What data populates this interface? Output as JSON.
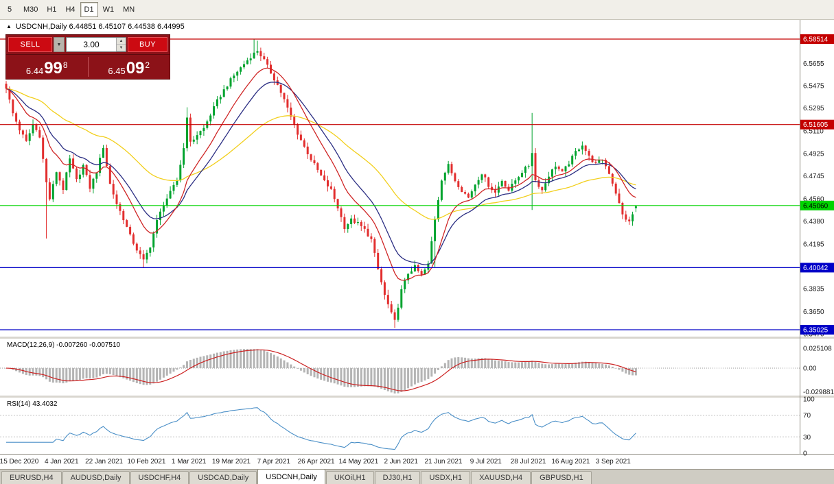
{
  "toolbar": {
    "timeframes": [
      "5",
      "M30",
      "H1",
      "H4",
      "D1",
      "W1",
      "MN"
    ],
    "active": "D1"
  },
  "chart_header": {
    "title": "USDCNH,Daily 6.44851 6.45107 6.44538 6.44995"
  },
  "icons": {
    "collapse": "▲",
    "dropdown": "▼",
    "spin_up": "▲",
    "spin_down": "▼"
  },
  "trade_panel": {
    "sell_label": "SELL",
    "buy_label": "BUY",
    "lots": "3.00",
    "sell_price": {
      "prefix": "6.44",
      "main": "99",
      "sup": "8"
    },
    "buy_price": {
      "prefix": "6.45",
      "main": "09",
      "sup": "2"
    }
  },
  "chart_data": {
    "type": "candlestick",
    "symbol": "USDCNH",
    "timeframe": "Daily",
    "ohlc_current": {
      "open": 6.44851,
      "high": 6.45107,
      "low": 6.44538,
      "close": 6.44995
    },
    "n_candles": 189,
    "y_ticks": [
      "6.5655",
      "6.5475",
      "6.5295",
      "6.5110",
      "6.4925",
      "6.4745",
      "6.4560",
      "6.4380",
      "6.4195",
      "6.4015",
      "6.3835",
      "6.3650",
      "6.3470"
    ],
    "date_labels": [
      "15 Dec 2020",
      "4 Jan 2021",
      "22 Jan 2021",
      "10 Feb 2021",
      "1 Mar 2021",
      "19 Mar 2021",
      "7 Apr 2021",
      "26 Apr 2021",
      "14 May 2021",
      "2 Jun 2021",
      "21 Jun 2021",
      "9 Jul 2021",
      "28 Jul 2021",
      "16 Aug 2021",
      "3 Sep 2021"
    ],
    "hlines": [
      {
        "price": 6.58514,
        "label": "6.58514",
        "color": "#c40000",
        "text_color": "#ffffff"
      },
      {
        "price": 6.51605,
        "label": "6.51605",
        "color": "#c40000",
        "text_color": "#ffffff"
      },
      {
        "price": 6.4506,
        "label": "6.45060",
        "color": "#00d400",
        "text_color": "#000000"
      },
      {
        "price": 6.40042,
        "label": "6.40042",
        "color": "#0000c8",
        "text_color": "#ffffff"
      },
      {
        "price": 6.35025,
        "label": "6.35025",
        "color": "#0000c8",
        "text_color": "#ffffff"
      }
    ],
    "colors": {
      "bull": "#00a32e",
      "bear": "#e22e2e",
      "axis_text": "#1a1a1a"
    },
    "moving_averages": [
      {
        "name": "ma-slow-yellow",
        "period": 55,
        "color": "#f2cf1d"
      },
      {
        "name": "ma-mid-navy",
        "period": 20,
        "color": "#2b2e83"
      },
      {
        "name": "ma-fast-red",
        "period": 12,
        "color": "#cf2626"
      }
    ],
    "close_anchors": [
      [
        0,
        6.546
      ],
      [
        2,
        6.525
      ],
      [
        4,
        6.512
      ],
      [
        6,
        6.502
      ],
      [
        8,
        6.516
      ],
      [
        10,
        6.507
      ],
      [
        12,
        6.469
      ],
      [
        13,
        6.456
      ],
      [
        15,
        6.478
      ],
      [
        17,
        6.464
      ],
      [
        19,
        6.488
      ],
      [
        21,
        6.471
      ],
      [
        23,
        6.483
      ],
      [
        25,
        6.465
      ],
      [
        27,
        6.478
      ],
      [
        29,
        6.498
      ],
      [
        31,
        6.468
      ],
      [
        33,
        6.452
      ],
      [
        35,
        6.44
      ],
      [
        37,
        6.426
      ],
      [
        39,
        6.415
      ],
      [
        41,
        6.406
      ],
      [
        43,
        6.418
      ],
      [
        45,
        6.438
      ],
      [
        47,
        6.452
      ],
      [
        49,
        6.461
      ],
      [
        51,
        6.471
      ],
      [
        53,
        6.497
      ],
      [
        54,
        6.523
      ],
      [
        55,
        6.501
      ],
      [
        57,
        6.508
      ],
      [
        59,
        6.513
      ],
      [
        61,
        6.524
      ],
      [
        63,
        6.535
      ],
      [
        65,
        6.544
      ],
      [
        67,
        6.552
      ],
      [
        69,
        6.559
      ],
      [
        71,
        6.565
      ],
      [
        73,
        6.571
      ],
      [
        75,
        6.576
      ],
      [
        77,
        6.568
      ],
      [
        79,
        6.558
      ],
      [
        81,
        6.548
      ],
      [
        83,
        6.536
      ],
      [
        85,
        6.522
      ],
      [
        87,
        6.509
      ],
      [
        89,
        6.498
      ],
      [
        91,
        6.488
      ],
      [
        93,
        6.479
      ],
      [
        95,
        6.47
      ],
      [
        97,
        6.463
      ],
      [
        99,
        6.449
      ],
      [
        101,
        6.433
      ],
      [
        103,
        6.439
      ],
      [
        105,
        6.436
      ],
      [
        107,
        6.431
      ],
      [
        109,
        6.423
      ],
      [
        111,
        6.399
      ],
      [
        113,
        6.378
      ],
      [
        115,
        6.363
      ],
      [
        116,
        6.357
      ],
      [
        118,
        6.382
      ],
      [
        120,
        6.396
      ],
      [
        122,
        6.401
      ],
      [
        124,
        6.394
      ],
      [
        126,
        6.403
      ],
      [
        128,
        6.44
      ],
      [
        130,
        6.472
      ],
      [
        132,
        6.483
      ],
      [
        134,
        6.471
      ],
      [
        136,
        6.463
      ],
      [
        138,
        6.457
      ],
      [
        140,
        6.468
      ],
      [
        142,
        6.477
      ],
      [
        144,
        6.467
      ],
      [
        146,
        6.461
      ],
      [
        148,
        6.471
      ],
      [
        150,
        6.463
      ],
      [
        152,
        6.471
      ],
      [
        154,
        6.478
      ],
      [
        156,
        6.483
      ],
      [
        157,
        6.494
      ],
      [
        158,
        6.471
      ],
      [
        160,
        6.463
      ],
      [
        162,
        6.475
      ],
      [
        164,
        6.483
      ],
      [
        166,
        6.477
      ],
      [
        168,
        6.485
      ],
      [
        170,
        6.494
      ],
      [
        172,
        6.5
      ],
      [
        174,
        6.49
      ],
      [
        176,
        6.484
      ],
      [
        178,
        6.488
      ],
      [
        180,
        6.477
      ],
      [
        182,
        6.461
      ],
      [
        184,
        6.443
      ],
      [
        186,
        6.437
      ],
      [
        188,
        6.45
      ]
    ],
    "wick_overrides": {
      "12": {
        "l": 6.424
      },
      "41": {
        "l": 6.4005
      },
      "54": {
        "h": 6.53
      },
      "74": {
        "h": 6.5851
      },
      "75": {
        "h": 6.5838
      },
      "116": {
        "l": 6.3516
      },
      "128": {
        "l": 6.401
      },
      "157": {
        "h": 6.5255,
        "l": 6.447
      }
    },
    "macd": {
      "label": "MACD(12,26,9) -0.007260 -0.007510",
      "fast": 12,
      "slow": 26,
      "signal": 9,
      "current_values": [
        -0.00726,
        -0.00751
      ],
      "axis_ticks": [
        "0.025108",
        "0.00",
        "-0.029881"
      ],
      "histogram_color": "#b4b4b4",
      "signal_color": "#cc2222"
    },
    "rsi": {
      "label": "RSI(14) 43.4032",
      "period": 14,
      "current_value": 43.4032,
      "axis_ticks": [
        "100",
        "70",
        "30",
        "0"
      ],
      "levels": [
        70,
        30
      ],
      "color": "#4a8fc7"
    }
  },
  "tabs": {
    "items": [
      "EURUSD,H4",
      "AUDUSD,Daily",
      "USDCHF,H4",
      "USDCAD,Daily",
      "USDCNH,Daily",
      "UKOil,H1",
      "DJ30,H1",
      "USDX,H1",
      "XAUUSD,H4",
      "GBPUSD,H1"
    ],
    "active": "USDCNH,Daily"
  }
}
